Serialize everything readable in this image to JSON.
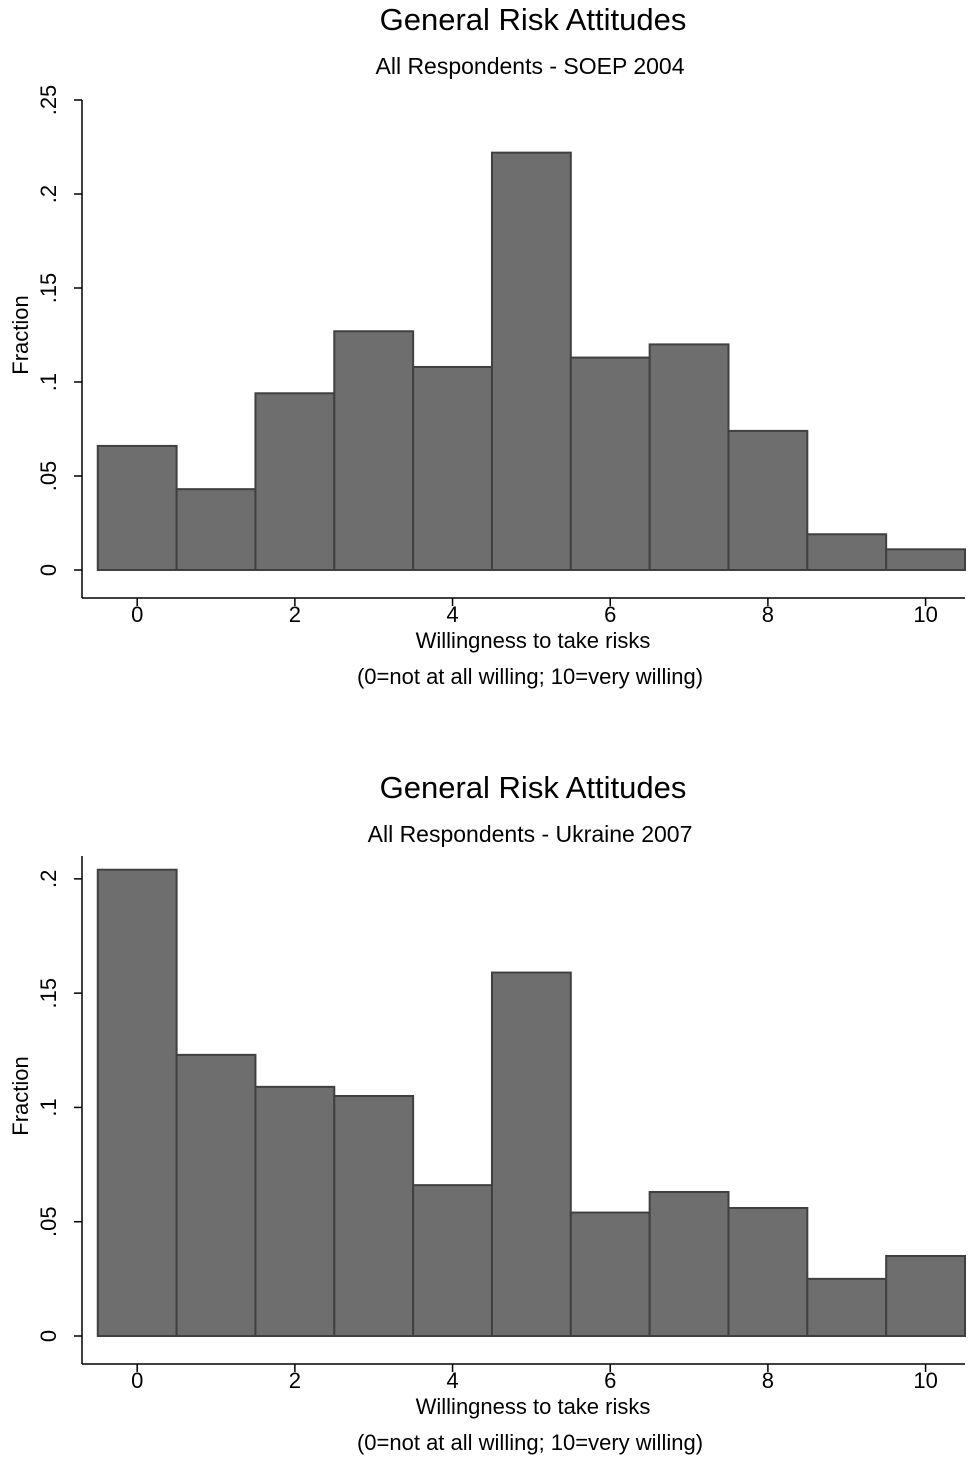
{
  "chart_data": [
    {
      "type": "histogram",
      "title": "General Risk Attitudes",
      "subtitle": "All Respondents - SOEP 2004",
      "xlabel": [
        "Willingness to take risks",
        "(0=not at all willing; 10=very willing)"
      ],
      "ylabel": "Fraction",
      "bins": [
        -0.5,
        0.5,
        1.5,
        2.5,
        3.5,
        4.5,
        5.5,
        6.5,
        7.5,
        8.5,
        9.5,
        10.5
      ],
      "values": [
        0.066,
        0.043,
        0.094,
        0.127,
        0.108,
        0.222,
        0.113,
        0.12,
        0.074,
        0.019,
        0.011
      ],
      "color": "#6e6e6e",
      "xlim": [
        -0.7,
        10.5
      ],
      "ylim": [
        0,
        0.25
      ],
      "xticks": [
        0,
        2,
        4,
        6,
        8,
        10
      ],
      "yticks": [
        0,
        {
          "value": 0.05,
          "label": ".05"
        },
        {
          "value": 0.1,
          "label": ".1"
        },
        {
          "value": 0.15,
          "label": ".15"
        },
        {
          "value": 0.2,
          "label": ".2"
        },
        {
          "value": 0.25,
          "label": ".25"
        }
      ]
    },
    {
      "type": "histogram",
      "title": "General Risk Attitudes",
      "subtitle": "All Respondents - Ukraine 2007",
      "xlabel": [
        "Willingness to take risks",
        "(0=not at all willing; 10=very willing)"
      ],
      "ylabel": "Fraction",
      "bins": [
        -0.5,
        0.5,
        1.5,
        2.5,
        3.5,
        4.5,
        5.5,
        6.5,
        7.5,
        8.5,
        9.5,
        10.5
      ],
      "values": [
        0.204,
        0.123,
        0.109,
        0.105,
        0.066,
        0.159,
        0.054,
        0.063,
        0.056,
        0.025,
        0.035
      ],
      "color": "#6e6e6e",
      "xlim": [
        -0.7,
        10.5
      ],
      "ylim": [
        0,
        0.21
      ],
      "xticks": [
        0,
        2,
        4,
        6,
        8,
        10
      ],
      "yticks": [
        0,
        {
          "value": 0.05,
          "label": ".05"
        },
        {
          "value": 0.1,
          "label": ".1"
        },
        {
          "value": 0.15,
          "label": ".15"
        },
        {
          "value": 0.2,
          "label": ".2"
        }
      ]
    }
  ]
}
